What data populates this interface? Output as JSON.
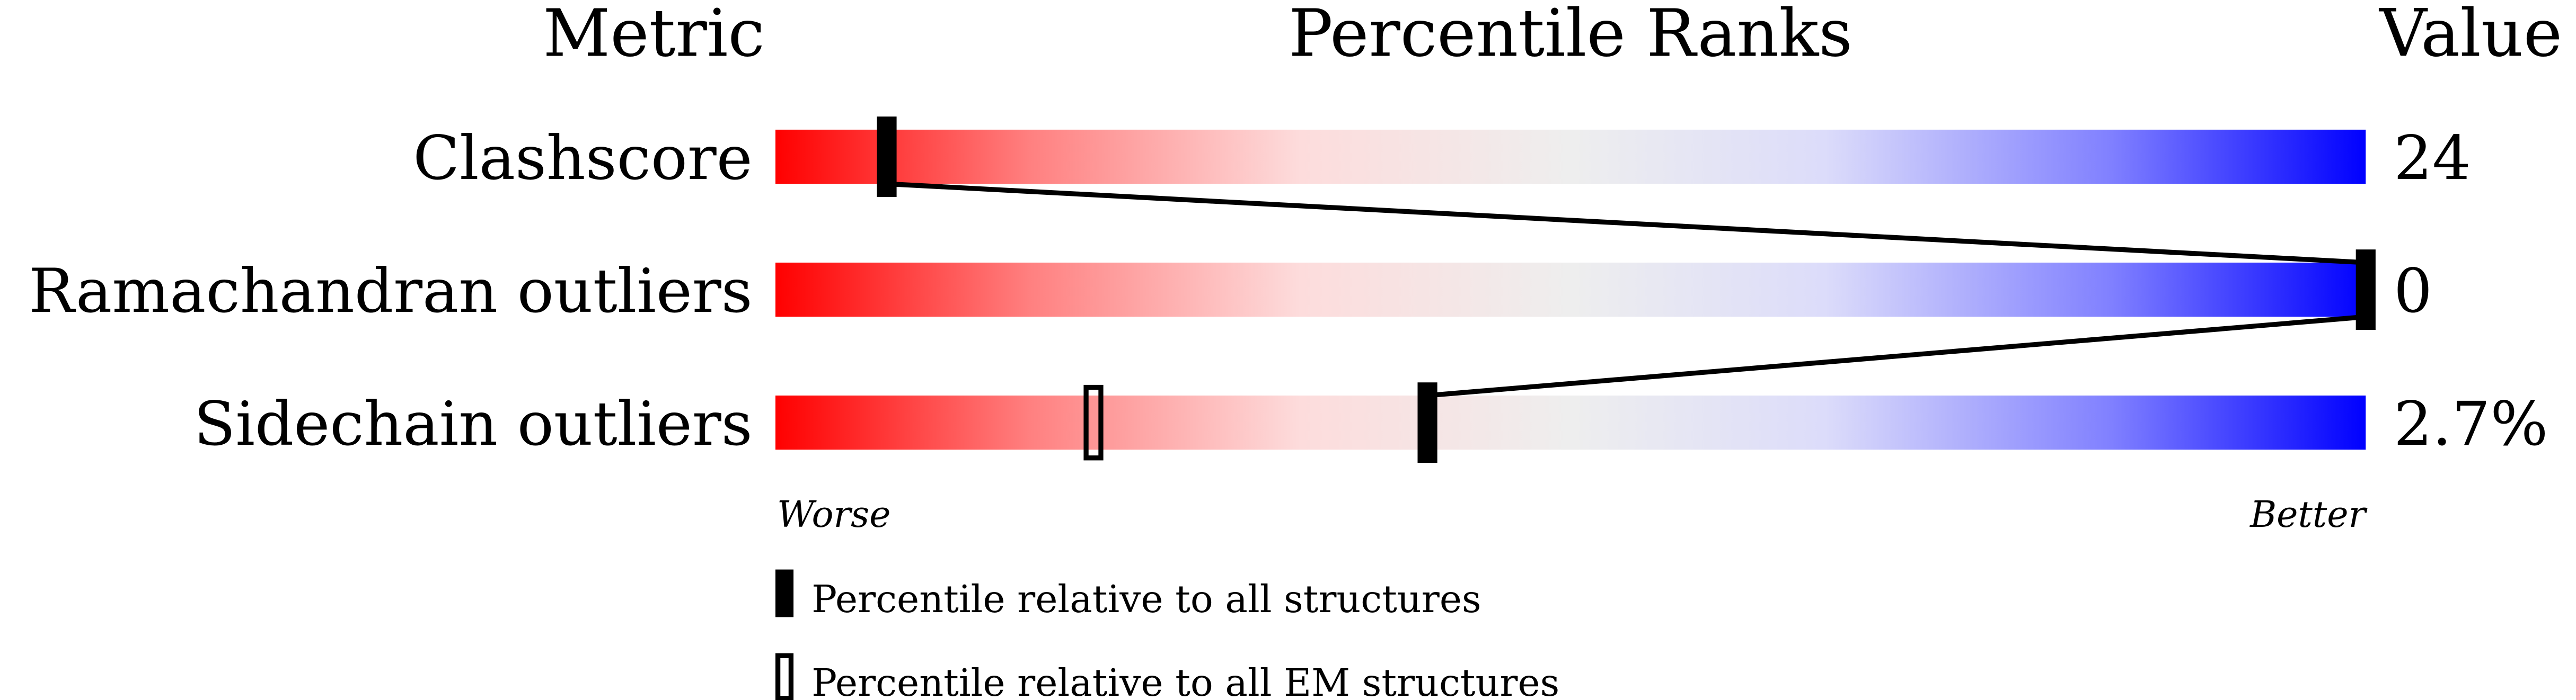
{
  "chart_data": {
    "type": "bar",
    "title": "",
    "headers": {
      "metric": "Metric",
      "ranks": "Percentile Ranks",
      "value": "Value"
    },
    "xlim": [
      0,
      100
    ],
    "scale_labels": {
      "left": "Worse",
      "right": "Better"
    },
    "gradient_colors": [
      "#ff0000",
      "#ff8080",
      "#fddcdc",
      "#eeeeee",
      "#dcdcfa",
      "#8080ff",
      "#0000ff"
    ],
    "rows": [
      {
        "metric": "Clashscore",
        "value": "24",
        "percentile_all": 7,
        "percentile_em": null
      },
      {
        "metric": "Ramachandran outliers",
        "value": "0",
        "percentile_all": 100,
        "percentile_em": null
      },
      {
        "metric": "Sidechain outliers",
        "value": "2.7%",
        "percentile_all": 41,
        "percentile_em": 20
      }
    ],
    "legend": [
      {
        "marker": "filled",
        "label": "Percentile relative to all structures"
      },
      {
        "marker": "open",
        "label": "Percentile relative to all EM structures"
      }
    ]
  }
}
